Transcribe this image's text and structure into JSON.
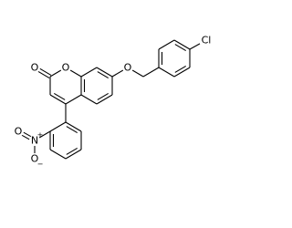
{
  "labels": {
    "carbonyl_oxygen": "O",
    "ring_oxygen": "O",
    "ether_oxygen": "O",
    "chlorine": "Cl",
    "nitro_nitrogen": "N",
    "nitro_nitrogen_charge": "+",
    "nitro_oxygen": "O",
    "nitro_oxygen_anion": "O",
    "nitro_oxygen_anion_charge": "−"
  }
}
